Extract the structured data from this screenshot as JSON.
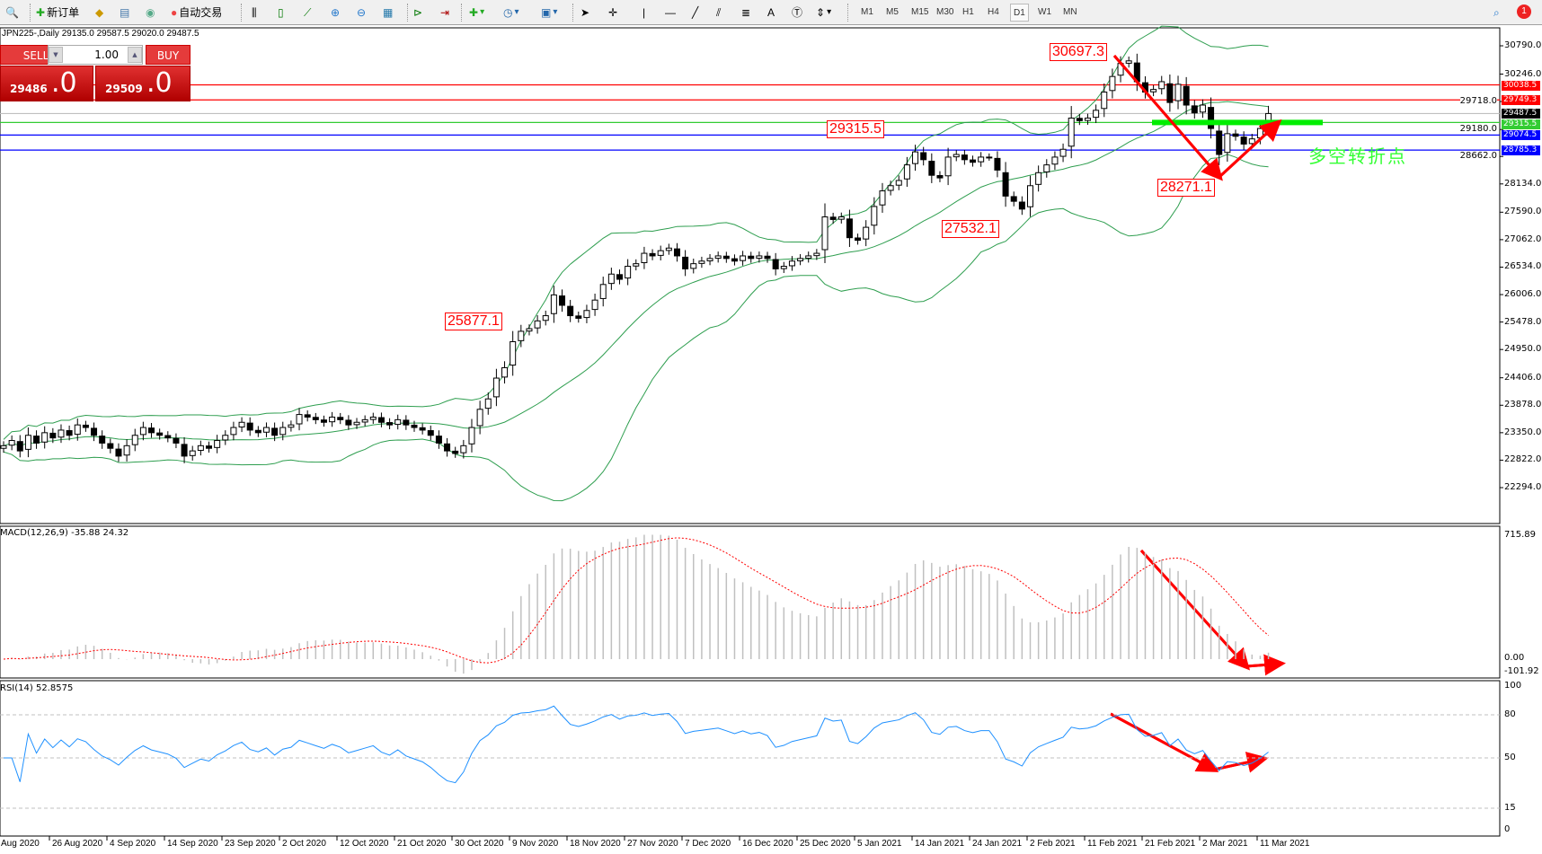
{
  "toolbar": {
    "new_order": "新订单",
    "auto_trading": "自动交易",
    "timeframes": [
      "M1",
      "M5",
      "M15",
      "M30",
      "H1",
      "H4",
      "D1",
      "W1",
      "MN"
    ],
    "active_timeframe": "D1",
    "notification_count": "1"
  },
  "chart": {
    "title": "JPN225-,Daily  29135.0 29587.5 29020.0 29487.5",
    "symbol": "JPN225-",
    "period": "Daily",
    "ohlc": {
      "open": 29135.0,
      "high": 29587.5,
      "low": 29020.0,
      "close": 29487.5
    }
  },
  "quick_trade": {
    "sell_label": "SELL",
    "buy_label": "BUY",
    "lots": "1.00",
    "sell_price_small": "29486",
    "sell_price_big": ".0",
    "buy_price_small": "29509",
    "buy_price_big": ".0"
  },
  "price_axis": {
    "ticks": [
      "30790.0",
      "30246.0",
      "29718.0",
      "29180.0",
      "28662.0",
      "28134.0",
      "27590.0",
      "27062.0",
      "26534.0",
      "26006.0",
      "25478.0",
      "24950.0",
      "24406.0",
      "23878.0",
      "23350.0",
      "22822.0",
      "22294.0"
    ],
    "range": [
      22294,
      30790
    ]
  },
  "levels": [
    {
      "price": 30038.5,
      "label": "30038.5",
      "color": "#ff0000"
    },
    {
      "price": 29749.3,
      "label": "29749.3",
      "color": "#ff0000"
    },
    {
      "price": 29487.5,
      "label": "29487.5",
      "color": "#000000",
      "line": "#c0c0c0"
    },
    {
      "price": 29315.5,
      "label": "29315.5",
      "color": "#33cc33"
    },
    {
      "price": 29074.5,
      "label": "29074.5",
      "color": "#0000ff"
    },
    {
      "price": 28785.3,
      "label": "28785.3",
      "color": "#0000ff"
    }
  ],
  "annotations": [
    "30697.3",
    "29315.5",
    "25877.1",
    "27532.1",
    "28271.1"
  ],
  "turning_point_text": "多空转折点",
  "colors": {
    "bollinger": "#2e9e4f",
    "arrow": "#ff0000",
    "zone": "#00ee00",
    "macd_hist": "#c0c0c0",
    "macd_signal": "#ff0000",
    "rsi": "#1e90ff"
  },
  "macd": {
    "label": "MACD(12,26,9) -35.88 24.32",
    "ticks": [
      "715.89",
      "0.00",
      "-101.92"
    ],
    "range": [
      -101.92,
      715.89
    ]
  },
  "rsi": {
    "label": "RSI(14) 52.8575",
    "ticks": [
      "100",
      "80",
      "50",
      "15",
      "0"
    ],
    "levels": [
      80,
      50,
      15
    ]
  },
  "dates": [
    "Aug 2020",
    "26 Aug 2020",
    "4 Sep 2020",
    "14 Sep 2020",
    "23 Sep 2020",
    "2 Oct 2020",
    "12 Oct 2020",
    "21 Oct 2020",
    "30 Oct 2020",
    "9 Nov 2020",
    "18 Nov 2020",
    "27 Nov 2020",
    "7 Dec 2020",
    "16 Dec 2020",
    "25 Dec 2020",
    "5 Jan 2021",
    "14 Jan 2021",
    "24 Jan 2021",
    "2 Feb 2021",
    "11 Feb 2021",
    "21 Feb 2021",
    "2 Mar 2021",
    "11 Mar 2021"
  ],
  "closes": [
    23100,
    23200,
    23000,
    23300,
    23150,
    23350,
    23250,
    23400,
    23300,
    23500,
    23450,
    23300,
    23150,
    23050,
    22900,
    23100,
    23300,
    23450,
    23350,
    23300,
    23250,
    23150,
    22900,
    23000,
    23100,
    23050,
    23200,
    23300,
    23450,
    23550,
    23400,
    23350,
    23450,
    23300,
    23450,
    23500,
    23700,
    23650,
    23600,
    23550,
    23650,
    23600,
    23500,
    23550,
    23600,
    23650,
    23550,
    23500,
    23600,
    23500,
    23450,
    23400,
    23300,
    23150,
    23000,
    22950,
    23100,
    23450,
    23800,
    24000,
    24400,
    24600,
    25100,
    25300,
    25350,
    25500,
    25600,
    26000,
    25800,
    25600,
    25550,
    25700,
    25900,
    26200,
    26400,
    26300,
    26550,
    26600,
    26800,
    26750,
    26850,
    26900,
    26750,
    26500,
    26600,
    26650,
    26700,
    26750,
    26700,
    26650,
    26750,
    26700,
    26750,
    26700,
    26500,
    26550,
    26650,
    26700,
    26750,
    26800,
    27500,
    27450,
    27500,
    27100,
    27050,
    27300,
    27700,
    28000,
    28100,
    28200,
    28500,
    28750,
    28600,
    28300,
    28250,
    28650,
    28700,
    28600,
    28550,
    28650,
    28650,
    28400,
    27900,
    27800,
    27650,
    28100,
    28350,
    28500,
    28650,
    28800,
    29400,
    29350,
    29400,
    29550,
    29900,
    30200,
    30450,
    30500,
    30100,
    29900,
    29950,
    30100,
    29700,
    30050,
    29650,
    29500,
    29650,
    29200,
    28700,
    29100,
    29050,
    28900,
    29000,
    29200,
    29487.5
  ]
}
